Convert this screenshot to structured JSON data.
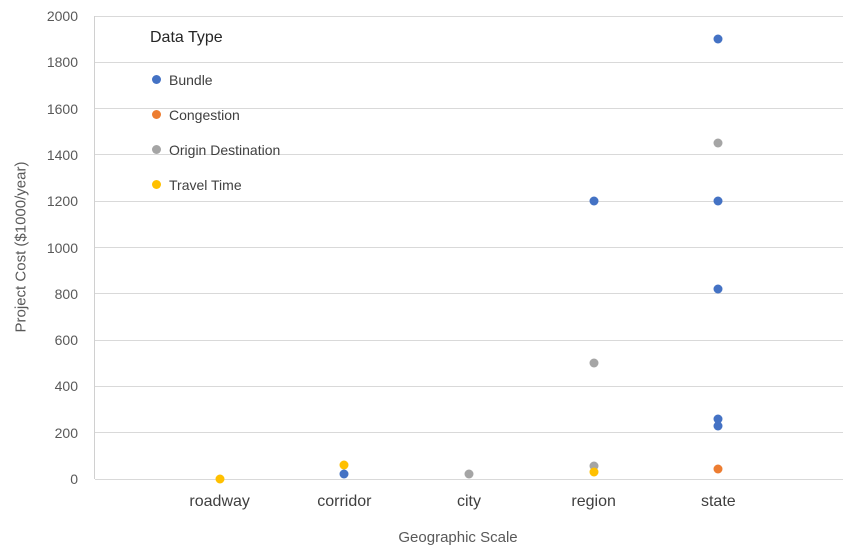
{
  "chart_data": {
    "type": "scatter",
    "title": "",
    "legend_title": "Data Type",
    "xlabel": "Geographic Scale",
    "ylabel": "Project Cost ($1000/year)",
    "categories": [
      "roadway",
      "corridor",
      "city",
      "region",
      "state"
    ],
    "ylim": [
      0,
      2000
    ],
    "yticks": [
      0,
      200,
      400,
      600,
      800,
      1000,
      1200,
      1400,
      1600,
      1800,
      2000
    ],
    "grid": "horizontal",
    "legend_position": "inside-top-left",
    "series": [
      {
        "name": "Bundle",
        "color": "#4472C4",
        "points": [
          {
            "category": "corridor",
            "value": 20
          },
          {
            "category": "region",
            "value": 1200
          },
          {
            "category": "state",
            "value": 1900
          },
          {
            "category": "state",
            "value": 1200
          },
          {
            "category": "state",
            "value": 820
          },
          {
            "category": "state",
            "value": 260
          },
          {
            "category": "state",
            "value": 230
          }
        ]
      },
      {
        "name": "Congestion",
        "color": "#ED7D31",
        "points": [
          {
            "category": "state",
            "value": 45
          }
        ]
      },
      {
        "name": "Origin Destination",
        "color": "#A5A5A5",
        "points": [
          {
            "category": "city",
            "value": 20
          },
          {
            "category": "region",
            "value": 500
          },
          {
            "category": "region",
            "value": 55
          },
          {
            "category": "state",
            "value": 1450
          }
        ]
      },
      {
        "name": "Travel Time",
        "color": "#FFC000",
        "points": [
          {
            "category": "roadway",
            "value": 0
          },
          {
            "category": "corridor",
            "value": 60
          },
          {
            "category": "region",
            "value": 30
          }
        ]
      }
    ],
    "colors": {
      "gridline": "#D9D9D9",
      "axis_line": "#D0D0D0",
      "tick_label": "#595959",
      "category_label": "#3F3F3F",
      "axis_title": "#595959",
      "legend_title": "#262626",
      "legend_label": "#404040",
      "background": "#FFFFFF"
    }
  }
}
